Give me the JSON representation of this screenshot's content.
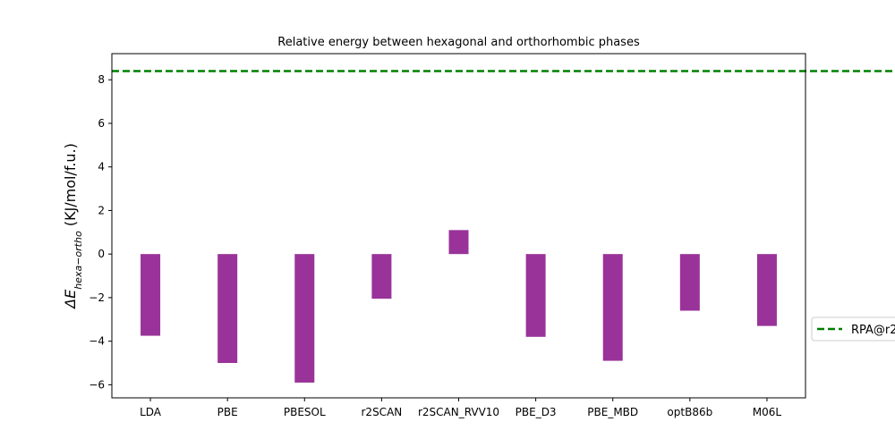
{
  "chart_data": {
    "type": "bar",
    "title": "Relative energy between hexagonal and orthorhombic phases",
    "ylabel": "ΔE_{hexa−ortho} (KJ/mol/f.u.)",
    "ylabel_parts": {
      "prefix": "ΔE",
      "subscript": "hexa−ortho",
      "suffix": " (KJ/mol/f.u.)"
    },
    "xlabel": "",
    "categories": [
      "LDA",
      "PBE",
      "PBESOL",
      "r2SCAN",
      "r2SCAN_RVV10",
      "PBE_D3",
      "PBE_MBD",
      "optB86b",
      "M06L"
    ],
    "series": [
      {
        "values": [
          -3.75,
          -5.0,
          -5.9,
          -2.05,
          1.1,
          -3.8,
          -4.9,
          -2.6,
          -3.3
        ],
        "color": "#993399"
      }
    ],
    "reference_line": {
      "label": "RPA@r2",
      "value": 8.4,
      "color": "#008000",
      "style": "dashed"
    },
    "ylim": [
      -6.6,
      9.2
    ],
    "yticks": [
      -6,
      -4,
      -2,
      0,
      2,
      4,
      6,
      8
    ],
    "grid": false,
    "legend_position": "right"
  }
}
